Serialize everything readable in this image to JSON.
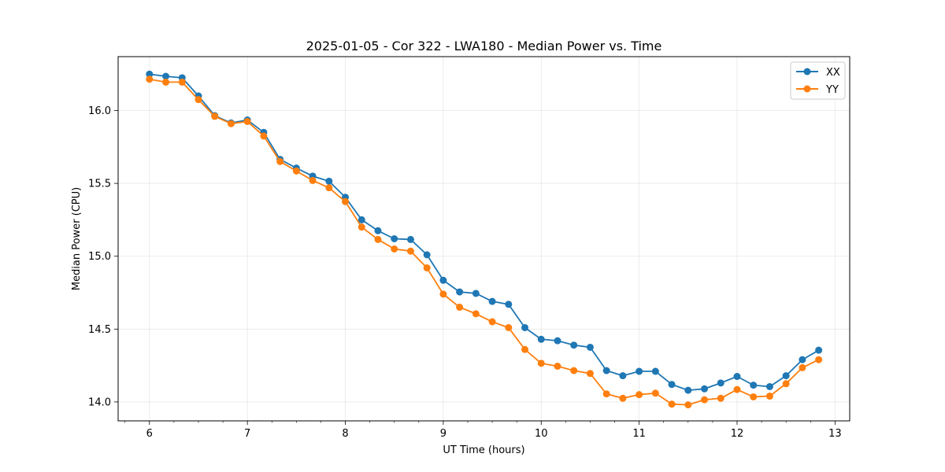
{
  "chart_data": {
    "type": "line",
    "title": "2025-01-05 - Cor 322 - LWA180 - Median Power vs. Time",
    "xlabel": "UT Time (hours)",
    "ylabel": "Median Power (CPU)",
    "xlim": [
      5.68,
      13.15
    ],
    "ylim": [
      13.87,
      16.37
    ],
    "xticks": [
      6,
      7,
      8,
      9,
      10,
      11,
      12,
      13
    ],
    "xtick_labels": [
      "6",
      "7",
      "8",
      "9",
      "10",
      "11",
      "12",
      "13"
    ],
    "xminor_step": 0.25,
    "yticks": [
      14.0,
      14.5,
      15.0,
      15.5,
      16.0
    ],
    "ytick_labels": [
      "14.0",
      "14.5",
      "15.0",
      "15.5",
      "16.0"
    ],
    "grid": true,
    "legend_position": "upper-right",
    "x": [
      6.0,
      6.1667,
      6.3333,
      6.5,
      6.6667,
      6.8333,
      7.0,
      7.1667,
      7.3333,
      7.5,
      7.6667,
      7.8333,
      8.0,
      8.1667,
      8.3333,
      8.5,
      8.6667,
      8.8333,
      9.0,
      9.1667,
      9.3333,
      9.5,
      9.6667,
      9.8333,
      10.0,
      10.1667,
      10.3333,
      10.5,
      10.6667,
      10.8333,
      11.0,
      11.1667,
      11.3333,
      11.5,
      11.6667,
      11.8333,
      12.0,
      12.1667,
      12.3333,
      12.5,
      12.6667,
      12.8333
    ],
    "series": [
      {
        "name": "XX",
        "color": "#1f77b4",
        "values": [
          16.25,
          16.235,
          16.225,
          16.1,
          15.965,
          15.915,
          15.935,
          15.85,
          15.665,
          15.605,
          15.55,
          15.515,
          15.405,
          15.25,
          15.175,
          15.12,
          15.115,
          15.01,
          14.835,
          14.755,
          14.745,
          14.69,
          14.67,
          14.51,
          14.43,
          14.42,
          14.39,
          14.375,
          14.215,
          14.18,
          14.21,
          14.21,
          14.12,
          14.08,
          14.09,
          14.13,
          14.175,
          14.115,
          14.105,
          14.18,
          14.29,
          14.355
        ]
      },
      {
        "name": "YY",
        "color": "#ff7f0e",
        "values": [
          16.215,
          16.195,
          16.195,
          16.075,
          15.96,
          15.91,
          15.925,
          15.825,
          15.65,
          15.585,
          15.52,
          15.47,
          15.375,
          15.2,
          15.115,
          15.05,
          15.035,
          14.92,
          14.74,
          14.65,
          14.605,
          14.55,
          14.51,
          14.36,
          14.265,
          14.245,
          14.215,
          14.195,
          14.055,
          14.025,
          14.05,
          14.06,
          13.985,
          13.98,
          14.015,
          14.025,
          14.085,
          14.035,
          14.04,
          14.125,
          14.235,
          14.29
        ]
      }
    ]
  }
}
